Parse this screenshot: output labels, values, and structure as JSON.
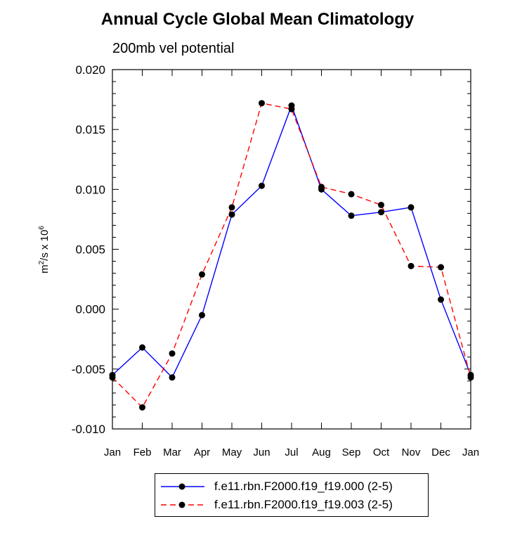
{
  "title": "Annual Cycle Global Mean Climatology",
  "subtitle": "200mb vel potential",
  "chart_data": {
    "type": "line",
    "ylabel_base": "m",
    "ylabel_sup1": "2",
    "ylabel_mid": "/s x 10",
    "ylabel_sup2": "6",
    "xlabel": "",
    "categories": [
      "Jan",
      "Feb",
      "Mar",
      "Apr",
      "May",
      "Jun",
      "Jul",
      "Aug",
      "Sep",
      "Oct",
      "Nov",
      "Dec",
      "Jan"
    ],
    "ylim": [
      -0.01,
      0.02
    ],
    "yticks": [
      "0.020",
      "0.015",
      "0.010",
      "0.005",
      "0.000",
      "-0.005",
      "-0.010"
    ],
    "ytick_values": [
      0.02,
      0.015,
      0.01,
      0.005,
      0.0,
      -0.005,
      -0.01
    ],
    "series": [
      {
        "name": "f.e11.rbn.F2000.f19_f19.000 (2-5)",
        "color": "#0000ff",
        "dash": "solid",
        "values": [
          -0.0055,
          -0.0032,
          -0.0057,
          -0.0005,
          0.0079,
          0.0103,
          0.017,
          0.01,
          0.0078,
          0.0081,
          0.0085,
          0.0008,
          -0.0055
        ]
      },
      {
        "name": "f.e11.rbn.F2000.f19_f19.003 (2-5)",
        "color": "#ff0000",
        "dash": "dashed",
        "values": [
          -0.0057,
          -0.0082,
          -0.0037,
          0.0029,
          0.0085,
          0.0172,
          0.0167,
          0.0102,
          0.0096,
          0.0087,
          0.0036,
          0.0035,
          -0.0057
        ]
      }
    ],
    "grid": false,
    "legend_position": "bottom"
  }
}
